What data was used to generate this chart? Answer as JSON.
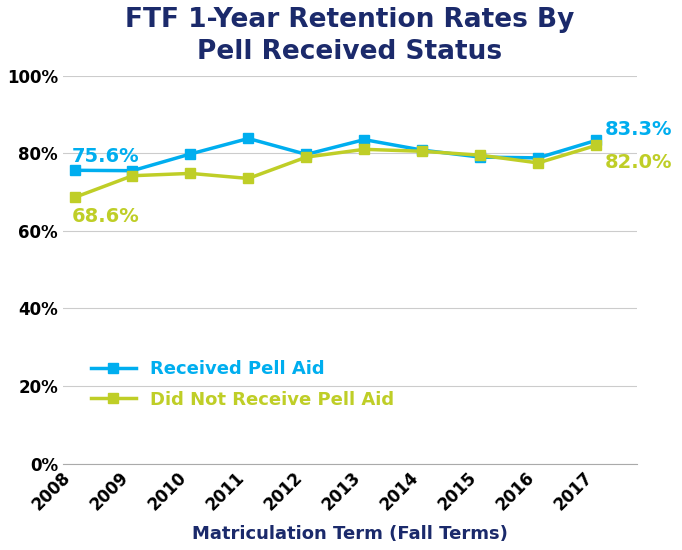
{
  "title": "FTF 1-Year Retention Rates By\nPell Received Status",
  "xlabel": "Matriculation Term (Fall Terms)",
  "years": [
    2008,
    2009,
    2010,
    2011,
    2012,
    2013,
    2014,
    2015,
    2016,
    2017
  ],
  "pell_received": [
    75.6,
    75.5,
    79.8,
    83.8,
    79.7,
    83.5,
    80.8,
    79.0,
    78.8,
    83.3
  ],
  "no_pell": [
    68.6,
    74.2,
    74.8,
    73.5,
    79.0,
    81.0,
    80.5,
    79.5,
    77.5,
    82.0
  ],
  "pell_color": "#00AEEF",
  "no_pell_color": "#BFCE27",
  "title_color": "#1B2A6B",
  "xlabel_color": "#1B2A6B",
  "background_color": "#FFFFFF",
  "plot_bg_color": "#FFFFFF",
  "grid_color": "#CCCCCC",
  "ylim": [
    0,
    100
  ],
  "yticks": [
    0,
    20,
    40,
    60,
    80,
    100
  ],
  "first_pell_label": "75.6%",
  "last_pell_label": "83.3%",
  "first_no_pell_label": "68.6%",
  "last_no_pell_label": "82.0%",
  "marker": "s",
  "linewidth": 2.5,
  "markersize": 7,
  "title_fontsize": 19,
  "axis_label_fontsize": 13,
  "tick_fontsize": 12,
  "legend_fontsize": 13,
  "annotation_fontsize": 14
}
